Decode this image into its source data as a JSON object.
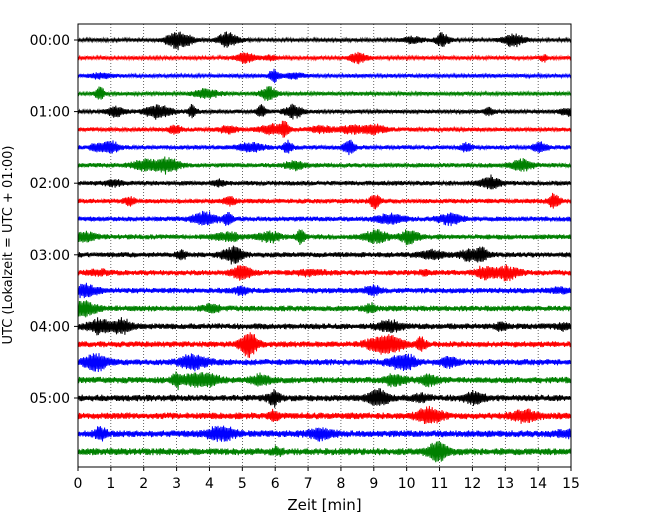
{
  "chart_data": {
    "type": "line",
    "title": "",
    "xlabel": "Zeit  [min]",
    "ylabel": "UTC (Lokalzeit = UTC + 01:00)",
    "xlim": [
      0,
      15
    ],
    "x_ticks": [
      0,
      1,
      2,
      3,
      4,
      5,
      6,
      7,
      8,
      9,
      10,
      11,
      12,
      13,
      14,
      15
    ],
    "x_tick_labels": [
      "0",
      "1",
      "2",
      "3",
      "4",
      "5",
      "6",
      "7",
      "8",
      "9",
      "10",
      "11",
      "12",
      "13",
      "14",
      "15"
    ],
    "y_tick_labels": [
      "00:00",
      "01:00",
      "02:00",
      "03:00",
      "04:00",
      "05:00"
    ],
    "y_tick_rows": [
      0,
      4,
      8,
      12,
      16,
      20
    ],
    "grid": "vertical dotted at each minute",
    "row_interval_minutes": 15,
    "colors": [
      "#000000",
      "#ff0000",
      "#0000ff",
      "#008000"
    ],
    "traces": [
      {
        "start": "00:00",
        "color": "#000000"
      },
      {
        "start": "00:15",
        "color": "#ff0000"
      },
      {
        "start": "00:30",
        "color": "#0000ff"
      },
      {
        "start": "00:45",
        "color": "#008000"
      },
      {
        "start": "01:00",
        "color": "#000000"
      },
      {
        "start": "01:15",
        "color": "#ff0000"
      },
      {
        "start": "01:30",
        "color": "#0000ff"
      },
      {
        "start": "01:45",
        "color": "#008000"
      },
      {
        "start": "02:00",
        "color": "#000000"
      },
      {
        "start": "02:15",
        "color": "#ff0000"
      },
      {
        "start": "02:30",
        "color": "#0000ff"
      },
      {
        "start": "02:45",
        "color": "#008000"
      },
      {
        "start": "03:00",
        "color": "#000000"
      },
      {
        "start": "03:15",
        "color": "#ff0000"
      },
      {
        "start": "03:30",
        "color": "#0000ff"
      },
      {
        "start": "03:45",
        "color": "#008000"
      },
      {
        "start": "04:00",
        "color": "#000000"
      },
      {
        "start": "04:15",
        "color": "#ff0000"
      },
      {
        "start": "04:30",
        "color": "#0000ff"
      },
      {
        "start": "04:45",
        "color": "#008000"
      },
      {
        "start": "05:00",
        "color": "#000000"
      },
      {
        "start": "05:15",
        "color": "#ff0000"
      },
      {
        "start": "05:30",
        "color": "#0000ff"
      },
      {
        "start": "05:45",
        "color": "#008000"
      }
    ]
  }
}
